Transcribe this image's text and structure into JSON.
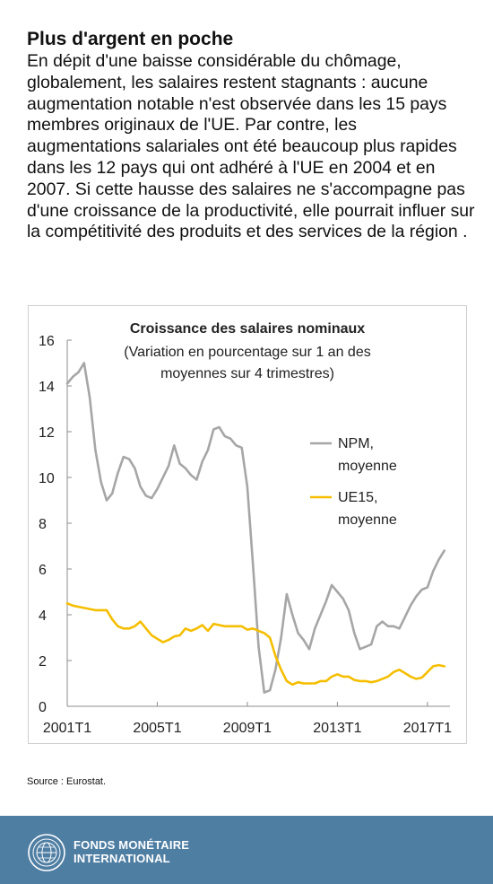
{
  "header": {
    "title": "Plus d'argent en poche",
    "body": "En dépit d'une baisse considérable du chômage, globalement, les salaires restent stagnants : aucune augmentation notable n'est observée dans les 15 pays membres originaux de l'UE. Par contre, les augmentations salariales ont été beaucoup plus rapides dans les 12 pays qui ont adhéré à l'UE en 2004 et en 2007. Si cette hausse des salaires ne s'accompagne pas d'une croissance de la productivité, elle pourrait influer sur la compétitivité des produits et des services de la région ."
  },
  "chart_data": {
    "type": "line",
    "title": "Croissance des salaires nominaux",
    "subtitle_line1": "(Variation en pourcentage sur 1 an des",
    "subtitle_line2": "moyennes sur 4 trimestres)",
    "xlabel": "",
    "ylabel": "",
    "ylim": [
      0,
      16
    ],
    "yticks": [
      0,
      2,
      4,
      6,
      8,
      10,
      12,
      14,
      16
    ],
    "xlim": [
      2001.0,
      2018.0
    ],
    "xticks": [
      {
        "label": "2001T1",
        "x": 2001.0
      },
      {
        "label": "2005T1",
        "x": 2005.0
      },
      {
        "label": "2009T1",
        "x": 2009.0
      },
      {
        "label": "2013T1",
        "x": 2013.0
      },
      {
        "label": "2017T1",
        "x": 2017.0
      }
    ],
    "grid": false,
    "legend_position": "right",
    "series": [
      {
        "name_line1": "NPM,",
        "name_line2": "moyenne",
        "color": "#a6a6a6",
        "x": [
          2001.0,
          2001.25,
          2001.5,
          2001.75,
          2002.0,
          2002.25,
          2002.5,
          2002.75,
          2003.0,
          2003.25,
          2003.5,
          2003.75,
          2004.0,
          2004.25,
          2004.5,
          2004.75,
          2005.0,
          2005.25,
          2005.5,
          2005.75,
          2006.0,
          2006.25,
          2006.5,
          2006.75,
          2007.0,
          2007.25,
          2007.5,
          2007.75,
          2008.0,
          2008.25,
          2008.5,
          2008.75,
          2009.0,
          2009.25,
          2009.5,
          2009.75,
          2010.0,
          2010.25,
          2010.5,
          2010.75,
          2011.0,
          2011.25,
          2011.5,
          2011.75,
          2012.0,
          2012.25,
          2012.5,
          2012.75,
          2013.0,
          2013.25,
          2013.5,
          2013.75,
          2014.0,
          2014.25,
          2014.5,
          2014.75,
          2015.0,
          2015.25,
          2015.5,
          2015.75,
          2016.0,
          2016.25,
          2016.5,
          2016.75,
          2017.0,
          2017.25,
          2017.5,
          2017.75
        ],
        "values": [
          14.1,
          14.4,
          14.6,
          15.0,
          13.5,
          11.2,
          9.8,
          9.0,
          9.3,
          10.2,
          10.9,
          10.8,
          10.4,
          9.6,
          9.2,
          9.1,
          9.5,
          10.0,
          10.5,
          11.4,
          10.6,
          10.4,
          10.1,
          9.9,
          10.7,
          11.2,
          12.1,
          12.2,
          11.8,
          11.7,
          11.4,
          11.3,
          9.6,
          6.2,
          2.6,
          0.6,
          0.7,
          1.6,
          3.0,
          4.9,
          4.0,
          3.2,
          2.9,
          2.5,
          3.4,
          4.0,
          4.6,
          5.3,
          5.0,
          4.7,
          4.2,
          3.2,
          2.5,
          2.6,
          2.7,
          3.5,
          3.7,
          3.5,
          3.5,
          3.4,
          3.9,
          4.4,
          4.8,
          5.1,
          5.2,
          5.9,
          6.4,
          6.8
        ]
      },
      {
        "name_line1": "UE15,",
        "name_line2": "moyenne",
        "color": "#f5be00",
        "x": [
          2001.0,
          2001.25,
          2001.5,
          2001.75,
          2002.0,
          2002.25,
          2002.5,
          2002.75,
          2003.0,
          2003.25,
          2003.5,
          2003.75,
          2004.0,
          2004.25,
          2004.5,
          2004.75,
          2005.0,
          2005.25,
          2005.5,
          2005.75,
          2006.0,
          2006.25,
          2006.5,
          2006.75,
          2007.0,
          2007.25,
          2007.5,
          2007.75,
          2008.0,
          2008.25,
          2008.5,
          2008.75,
          2009.0,
          2009.25,
          2009.5,
          2009.75,
          2010.0,
          2010.25,
          2010.5,
          2010.75,
          2011.0,
          2011.25,
          2011.5,
          2011.75,
          2012.0,
          2012.25,
          2012.5,
          2012.75,
          2013.0,
          2013.25,
          2013.5,
          2013.75,
          2014.0,
          2014.25,
          2014.5,
          2014.75,
          2015.0,
          2015.25,
          2015.5,
          2015.75,
          2016.0,
          2016.25,
          2016.5,
          2016.75,
          2017.0,
          2017.25,
          2017.5,
          2017.75
        ],
        "values": [
          4.5,
          4.4,
          4.35,
          4.3,
          4.25,
          4.2,
          4.2,
          4.2,
          3.8,
          3.5,
          3.4,
          3.4,
          3.5,
          3.7,
          3.4,
          3.1,
          2.95,
          2.8,
          2.9,
          3.05,
          3.1,
          3.4,
          3.3,
          3.4,
          3.55,
          3.3,
          3.6,
          3.55,
          3.5,
          3.5,
          3.5,
          3.5,
          3.35,
          3.4,
          3.3,
          3.2,
          3.0,
          2.2,
          1.6,
          1.1,
          0.95,
          1.05,
          1.0,
          1.0,
          1.0,
          1.1,
          1.1,
          1.3,
          1.4,
          1.3,
          1.3,
          1.15,
          1.1,
          1.1,
          1.05,
          1.1,
          1.2,
          1.3,
          1.5,
          1.6,
          1.45,
          1.3,
          1.2,
          1.25,
          1.5,
          1.75,
          1.8,
          1.75
        ]
      }
    ]
  },
  "source": "Source : Eurostat.",
  "footer": {
    "org_line1": "FONDS MONÉTAIRE",
    "org_line2": "INTERNATIONAL"
  },
  "colors": {
    "footer_bg": "#4f7ea3",
    "axis": "#8c8c8c"
  }
}
